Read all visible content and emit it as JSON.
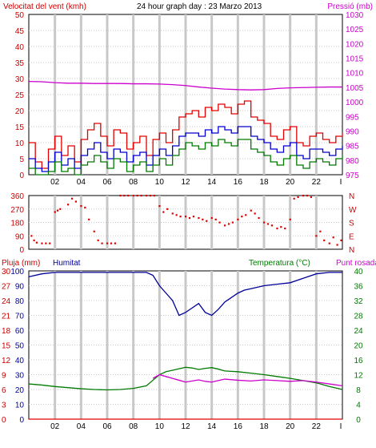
{
  "header": {
    "left_label": "Velocitat del vent (kmh)",
    "title": "24 hour graph day : 23 Marzo 2013",
    "right_label": "Pressió (mb)"
  },
  "colors": {
    "wind_gust": "#e00000",
    "wind_avg": "#0000cc",
    "wind_min": "#007a00",
    "pressure": "#cc00cc",
    "direction": "#e00000",
    "rain": "#e00000",
    "humidity": "#000099",
    "temperature": "#007a00",
    "dewpoint": "#cc00cc",
    "grid": "#c8c8c8",
    "hour_band": "#c8c8c8"
  },
  "chart_data": [
    {
      "id": "wind_pressure",
      "type": "line",
      "title": "24 hour graph day : 23 Marzo 2013",
      "x_ticks": [
        "02",
        "04",
        "06",
        "08",
        "10",
        "12",
        "14",
        "16",
        "18",
        "20",
        "22",
        "I"
      ],
      "y_left_label": "Velocitat del vent (kmh)",
      "y_left_range": [
        0,
        50
      ],
      "y_left_ticks": [
        "0",
        "5",
        "10",
        "15",
        "20",
        "25",
        "30",
        "35",
        "40",
        "45",
        "50"
      ],
      "y_right_label": "Pressió (mb)",
      "y_right_range": [
        975,
        1030
      ],
      "y_right_ticks": [
        "975",
        "980",
        "985",
        "990",
        "995",
        "1000",
        "1005",
        "1010",
        "1015",
        "1020",
        "1025",
        "1030"
      ],
      "grid": true,
      "series": [
        {
          "key": "gust",
          "axis": "left",
          "hours": [
            0,
            0.5,
            1,
            1.5,
            2,
            2.5,
            3,
            3.5,
            4,
            4.5,
            5,
            5.5,
            6,
            6.5,
            7,
            7.5,
            8,
            8.5,
            9,
            9.5,
            10,
            10.5,
            11,
            11.5,
            12,
            12.5,
            13,
            13.5,
            14,
            14.5,
            15,
            15.5,
            16,
            16.5,
            17,
            17.5,
            18,
            18.5,
            19,
            19.5,
            20,
            20.5,
            21,
            21.5,
            22,
            22.5,
            23,
            23.5,
            24
          ],
          "values": [
            10,
            4,
            2,
            8,
            12,
            6,
            9,
            4,
            11,
            14,
            16,
            12,
            9,
            14,
            13,
            8,
            10,
            12,
            6,
            11,
            13,
            10,
            14,
            18,
            19,
            20,
            18,
            21,
            20,
            22,
            21,
            19,
            22,
            23,
            18,
            17,
            16,
            12,
            11,
            14,
            15,
            10,
            9,
            12,
            13,
            11,
            10,
            12,
            13
          ]
        },
        {
          "key": "avg",
          "axis": "left",
          "hours": [
            0,
            0.5,
            1,
            1.5,
            2,
            2.5,
            3,
            3.5,
            4,
            4.5,
            5,
            5.5,
            6,
            6.5,
            7,
            7.5,
            8,
            8.5,
            9,
            9.5,
            10,
            10.5,
            11,
            11.5,
            12,
            12.5,
            13,
            13.5,
            14,
            14.5,
            15,
            15.5,
            16,
            16.5,
            17,
            17.5,
            18,
            18.5,
            19,
            19.5,
            20,
            20.5,
            21,
            21.5,
            22,
            22.5,
            23,
            23.5,
            24
          ],
          "values": [
            5,
            2,
            1,
            4,
            7,
            3,
            5,
            2,
            6,
            8,
            10,
            7,
            5,
            8,
            7,
            4,
            6,
            7,
            3,
            6,
            8,
            6,
            9,
            12,
            13,
            13,
            12,
            14,
            13,
            15,
            14,
            13,
            15,
            15,
            12,
            11,
            10,
            8,
            7,
            9,
            10,
            6,
            5,
            8,
            8,
            7,
            6,
            8,
            9
          ]
        },
        {
          "key": "min",
          "axis": "left",
          "hours": [
            0,
            0.5,
            1,
            1.5,
            2,
            2.5,
            3,
            3.5,
            4,
            4.5,
            5,
            5.5,
            6,
            6.5,
            7,
            7.5,
            8,
            8.5,
            9,
            9.5,
            10,
            10.5,
            11,
            11.5,
            12,
            12.5,
            13,
            13.5,
            14,
            14.5,
            15,
            15.5,
            16,
            16.5,
            17,
            17.5,
            18,
            18.5,
            19,
            19.5,
            20,
            20.5,
            21,
            21.5,
            22,
            22.5,
            23,
            23.5,
            24
          ],
          "values": [
            2,
            0,
            0,
            1,
            4,
            1,
            2,
            0,
            3,
            4,
            6,
            4,
            2,
            5,
            4,
            1,
            3,
            4,
            1,
            3,
            5,
            3,
            6,
            8,
            10,
            9,
            8,
            10,
            9,
            11,
            10,
            9,
            11,
            11,
            8,
            7,
            6,
            4,
            3,
            5,
            6,
            3,
            2,
            4,
            5,
            4,
            3,
            5,
            6
          ]
        },
        {
          "key": "pressure",
          "axis": "right",
          "hours": [
            0,
            1,
            2,
            3,
            4,
            5,
            6,
            7,
            8,
            9,
            10,
            11,
            12,
            13,
            14,
            15,
            16,
            17,
            18,
            19,
            20,
            21,
            22,
            23,
            24
          ],
          "values": [
            1007.0,
            1006.9,
            1006.6,
            1006.4,
            1006.4,
            1006.3,
            1006.3,
            1006.3,
            1006.2,
            1006.2,
            1006.1,
            1005.9,
            1005.6,
            1005.1,
            1004.7,
            1004.4,
            1004.2,
            1004.1,
            1004.2,
            1004.6,
            1004.8,
            1004.9,
            1005.0,
            1005.1,
            1005.1
          ]
        }
      ]
    },
    {
      "id": "wind_direction",
      "type": "scatter",
      "y_range": [
        0,
        360
      ],
      "y_ticks": [
        "0",
        "90",
        "180",
        "270",
        "360"
      ],
      "y_right_ticks": [
        "N",
        "E",
        "S",
        "W",
        "N"
      ],
      "grid": true,
      "series": [
        {
          "key": "direction",
          "hours": [
            0.2,
            0.4,
            0.6,
            1,
            1.3,
            1.6,
            2,
            2.2,
            2.4,
            3,
            3.3,
            3.6,
            4,
            4.3,
            4.6,
            5,
            5.3,
            5.6,
            6,
            6.3,
            6.6,
            7,
            7.3,
            7.6,
            8,
            8.3,
            8.6,
            9,
            9.3,
            9.6,
            10,
            10.3,
            10.6,
            11,
            11.3,
            11.6,
            12,
            12.3,
            12.6,
            13,
            13.3,
            13.6,
            14,
            14.3,
            14.6,
            15,
            15.3,
            15.6,
            16,
            16.3,
            16.6,
            17,
            17.3,
            17.6,
            18,
            18.3,
            18.6,
            19,
            19.3,
            19.6,
            20,
            20.3,
            20.6,
            21,
            21.3,
            21.6,
            22,
            22.3,
            22.6,
            23,
            23.3,
            23.6,
            23.9
          ],
          "values": [
            90,
            60,
            45,
            40,
            40,
            40,
            250,
            260,
            270,
            300,
            340,
            320,
            290,
            280,
            200,
            120,
            60,
            40,
            40,
            40,
            40,
            360,
            360,
            360,
            360,
            360,
            360,
            360,
            360,
            360,
            290,
            250,
            270,
            240,
            230,
            220,
            220,
            210,
            220,
            210,
            200,
            190,
            210,
            200,
            180,
            160,
            170,
            180,
            200,
            220,
            230,
            260,
            240,
            210,
            180,
            170,
            160,
            140,
            150,
            140,
            200,
            340,
            350,
            360,
            360,
            350,
            90,
            120,
            60,
            40,
            80,
            30,
            60
          ]
        }
      ]
    },
    {
      "id": "rain_humidity_temp",
      "type": "line",
      "x_ticks": [
        "02",
        "04",
        "06",
        "08",
        "10",
        "12",
        "14",
        "16",
        "18",
        "20",
        "22",
        "I"
      ],
      "y_left_labels": [
        "Pluja (mm)",
        "Humitat"
      ],
      "y_left_rain_ticks": [
        "0",
        "3",
        "6",
        "9",
        "12",
        "15",
        "18",
        "21",
        "24",
        "27",
        "30"
      ],
      "y_left_hum_ticks": [
        "0",
        "10",
        "20",
        "30",
        "40",
        "50",
        "60",
        "70",
        "80",
        "90",
        "100"
      ],
      "y_right_label": "Temperatura (°C)",
      "y_right_label2": "Punt rosada",
      "y_right_range": [
        0,
        40
      ],
      "y_right_ticks": [
        "0",
        "4",
        "8",
        "12",
        "16",
        "20",
        "24",
        "28",
        "32",
        "36",
        "40"
      ],
      "grid": true,
      "series": [
        {
          "key": "rain",
          "axis": "rain",
          "hours": [
            0,
            24
          ],
          "values": [
            0,
            0
          ]
        },
        {
          "key": "humidity",
          "axis": "humidity",
          "hours": [
            0,
            1,
            2,
            3,
            4,
            5,
            6,
            7,
            8,
            9,
            9.5,
            10,
            10.5,
            11,
            11.5,
            12,
            12.5,
            13,
            13.5,
            14,
            14.5,
            15,
            15.5,
            16,
            16.5,
            17,
            17.5,
            18,
            19,
            20,
            21,
            22,
            23,
            24
          ],
          "values": [
            96,
            98,
            99,
            99,
            99,
            99,
            99,
            99,
            99,
            99,
            97,
            90,
            85,
            80,
            70,
            72,
            75,
            78,
            72,
            70,
            74,
            79,
            82,
            85,
            87,
            88,
            89,
            90,
            91,
            92,
            95,
            98,
            99,
            99
          ]
        },
        {
          "key": "temperature",
          "axis": "right",
          "hours": [
            0,
            1,
            2,
            3,
            4,
            5,
            6,
            7,
            8,
            9,
            9.5,
            10,
            10.5,
            11,
            11.5,
            12,
            12.5,
            13,
            13.5,
            14,
            14.5,
            15,
            16,
            17,
            18,
            19,
            20,
            21,
            22,
            23,
            24
          ],
          "values": [
            9.5,
            9.2,
            8.8,
            8.5,
            8.2,
            8,
            7.9,
            8,
            8.3,
            9,
            10.5,
            12,
            12.8,
            13.2,
            13.6,
            14,
            13.8,
            13.4,
            13.7,
            13.9,
            13.5,
            13,
            12.8,
            12.4,
            12,
            11.5,
            11,
            10.4,
            9.8,
            8.8,
            8
          ]
        },
        {
          "key": "dewpoint",
          "axis": "right",
          "hours": [
            9.5,
            10,
            10.5,
            11,
            11.5,
            12,
            12.5,
            13,
            13.5,
            14,
            14.5,
            15,
            16,
            17,
            18,
            19,
            20,
            21,
            22,
            23,
            24
          ],
          "values": [
            11,
            12,
            11.5,
            11,
            10.5,
            10,
            10.3,
            10.6,
            10.2,
            10,
            10.4,
            10.8,
            10.5,
            10.3,
            10.6,
            10.4,
            10.2,
            10.4,
            10,
            9.5,
            9
          ]
        }
      ]
    }
  ],
  "panel3": {
    "rain_label": "Pluja (mm)",
    "hum_label": "Humitat",
    "temp_label": "Temperatura (°C)",
    "dew_label": "Punt rosada"
  }
}
